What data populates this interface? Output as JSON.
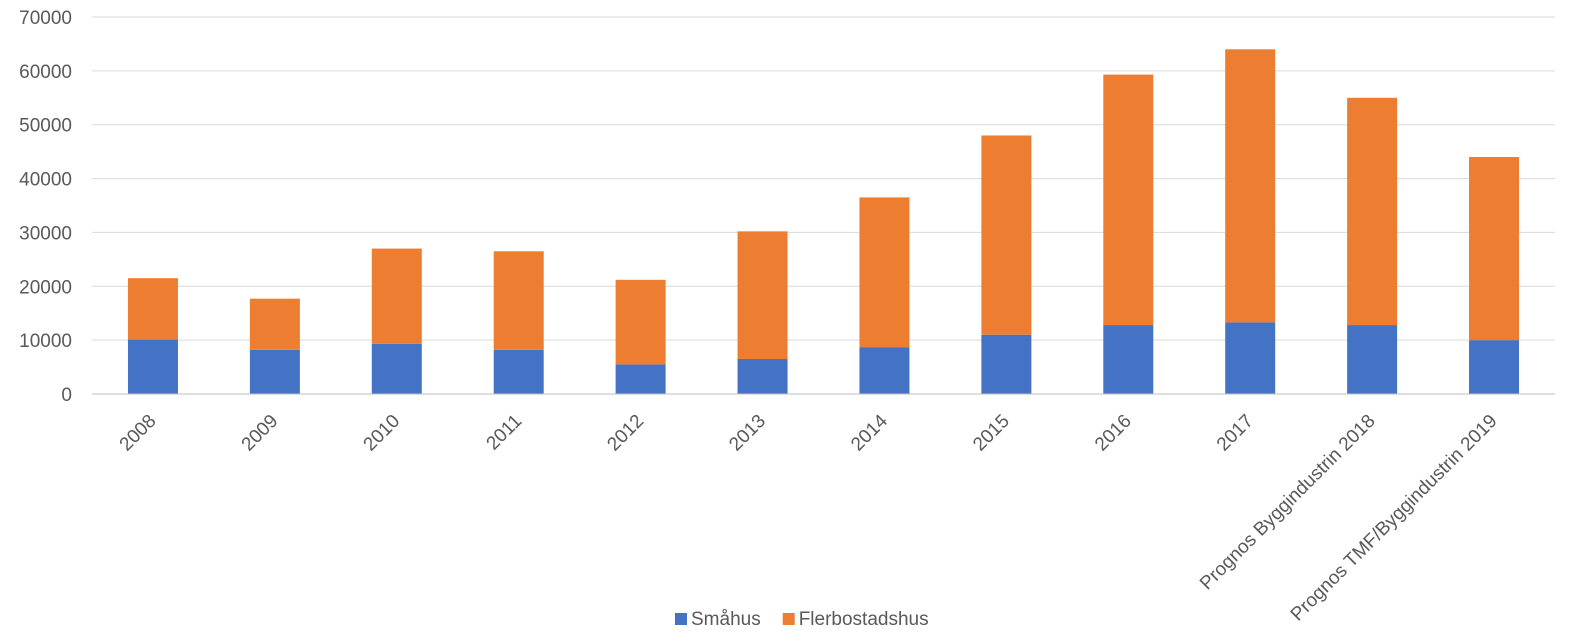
{
  "chart_data": {
    "type": "bar",
    "stacked": true,
    "title": "",
    "xlabel": "",
    "ylabel": "",
    "ylim": [
      0,
      70000
    ],
    "yticks": [
      0,
      10000,
      20000,
      30000,
      40000,
      50000,
      60000,
      70000
    ],
    "grid": true,
    "legend_position": "bottom",
    "categories": [
      "2008",
      "2009",
      "2010",
      "2011",
      "2012",
      "2013",
      "2014",
      "2015",
      "2016",
      "2017",
      "Prognos Byggindustrin 2018",
      "Prognos TMF/Byggindustrin 2019"
    ],
    "series": [
      {
        "name": "Småhus",
        "color": "#4472c4",
        "values": [
          10100,
          8200,
          9300,
          8200,
          5500,
          6500,
          8700,
          11000,
          12800,
          13300,
          12800,
          10000
        ]
      },
      {
        "name": "Flerbostadshus",
        "color": "#ed7d31",
        "values": [
          11400,
          9500,
          17700,
          18300,
          15700,
          23700,
          27800,
          37000,
          46500,
          50700,
          42200,
          34000
        ]
      }
    ]
  }
}
